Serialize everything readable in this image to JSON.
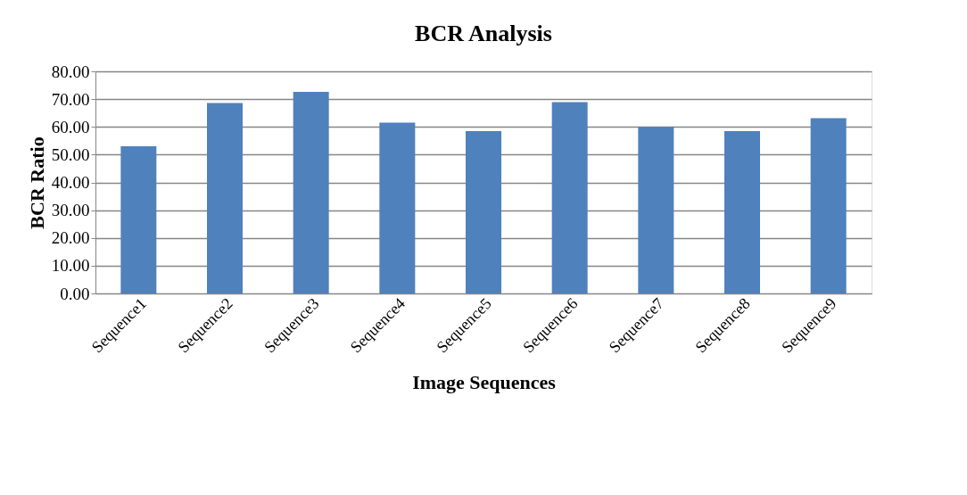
{
  "chart_data": {
    "type": "bar",
    "title": "BCR Analysis",
    "xlabel": "Image Sequences",
    "ylabel": "BCR Ratio",
    "categories": [
      "Sequence1",
      "Sequence2",
      "Sequence3",
      "Sequence4",
      "Sequence5",
      "Sequence6",
      "Sequence7",
      "Sequence8",
      "Sequence9"
    ],
    "values": [
      53.0,
      68.6,
      72.6,
      61.5,
      58.5,
      68.9,
      60.0,
      58.5,
      63.1
    ],
    "color": "#4f81bd",
    "ylim": [
      0,
      80
    ],
    "yticks": [
      {
        "value": 0,
        "label": "0.00"
      },
      {
        "value": 10,
        "label": "10.00"
      },
      {
        "value": 20,
        "label": "20.00"
      },
      {
        "value": 30,
        "label": "30.00"
      },
      {
        "value": 40,
        "label": "40.00"
      },
      {
        "value": 50,
        "label": "50.00"
      },
      {
        "value": 60,
        "label": "60.00"
      },
      {
        "value": 70,
        "label": "70.00"
      },
      {
        "value": 80,
        "label": "80.00"
      }
    ],
    "grid": "y"
  }
}
